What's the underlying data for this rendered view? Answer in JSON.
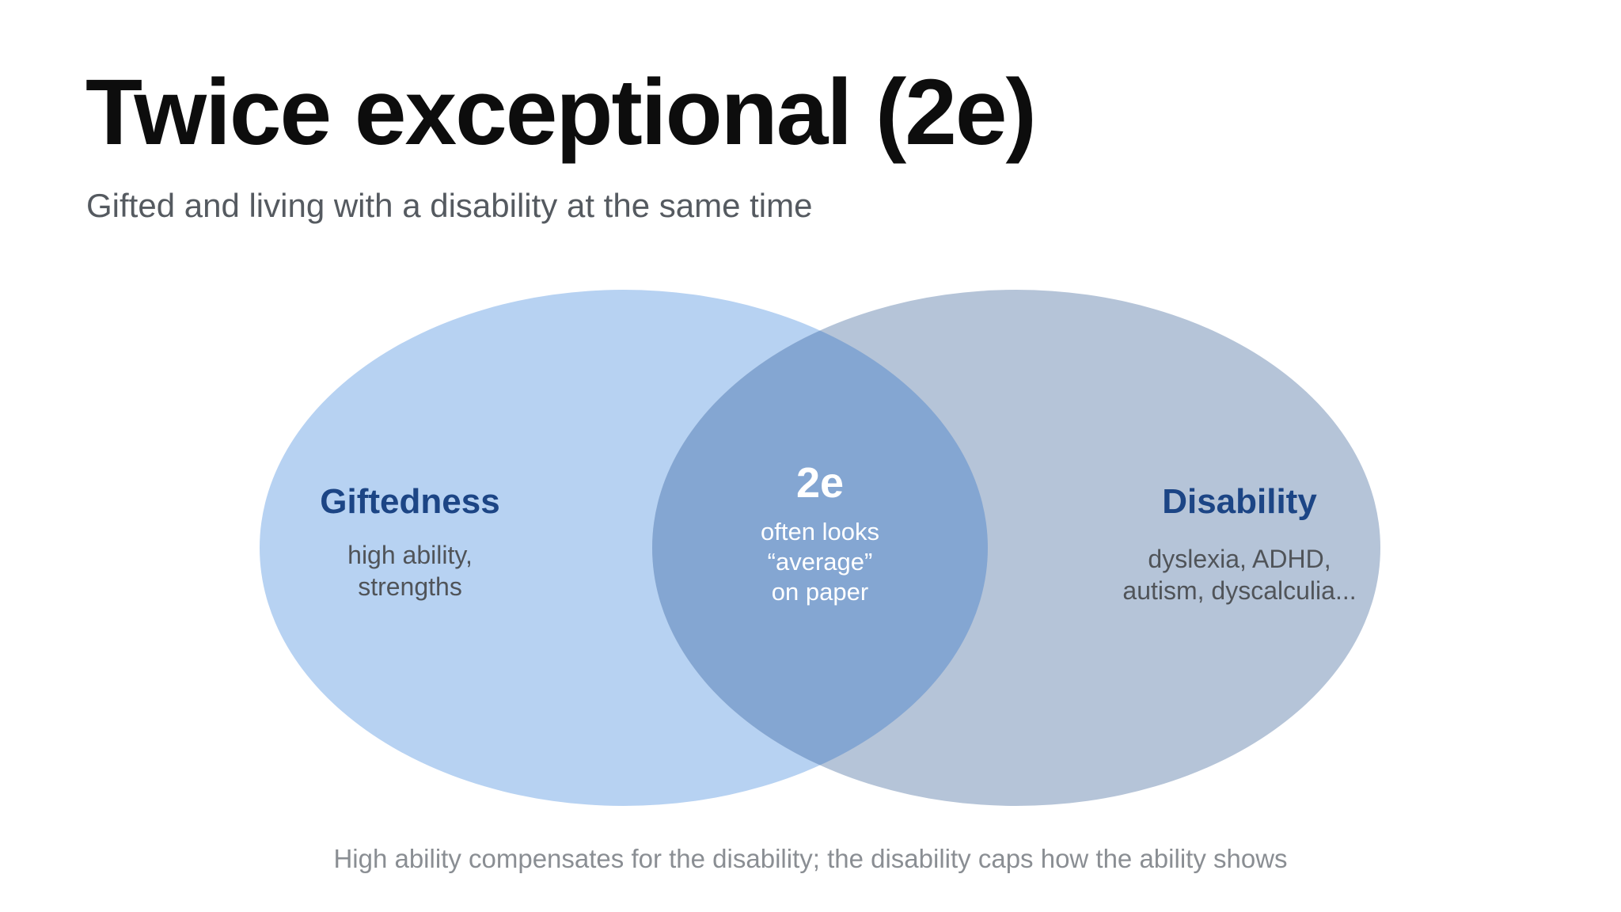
{
  "slide": {
    "title": "Twice exceptional (2e)",
    "subtitle": "Gifted and living with a disability at the same time",
    "footnote": "High ability compensates for the disability; the disability caps how the ability shows"
  },
  "venn": {
    "left": {
      "label": "Giftedness",
      "lines": [
        "high ability,",
        "strengths"
      ],
      "fill_color": "#b7d2f2"
    },
    "right": {
      "label": "Disability",
      "lines": [
        "dyslexia, ADHD,",
        "autism, dyscalculia..."
      ],
      "fill_color": "#b5c4d8"
    },
    "overlap": {
      "label": "2e",
      "lines": [
        "often looks",
        "“average”",
        "on paper"
      ],
      "fill_color": "#84a6d2"
    },
    "label_color": "#1c4585",
    "text_color": "#505459",
    "overlap_text_color": "#ffffff"
  }
}
